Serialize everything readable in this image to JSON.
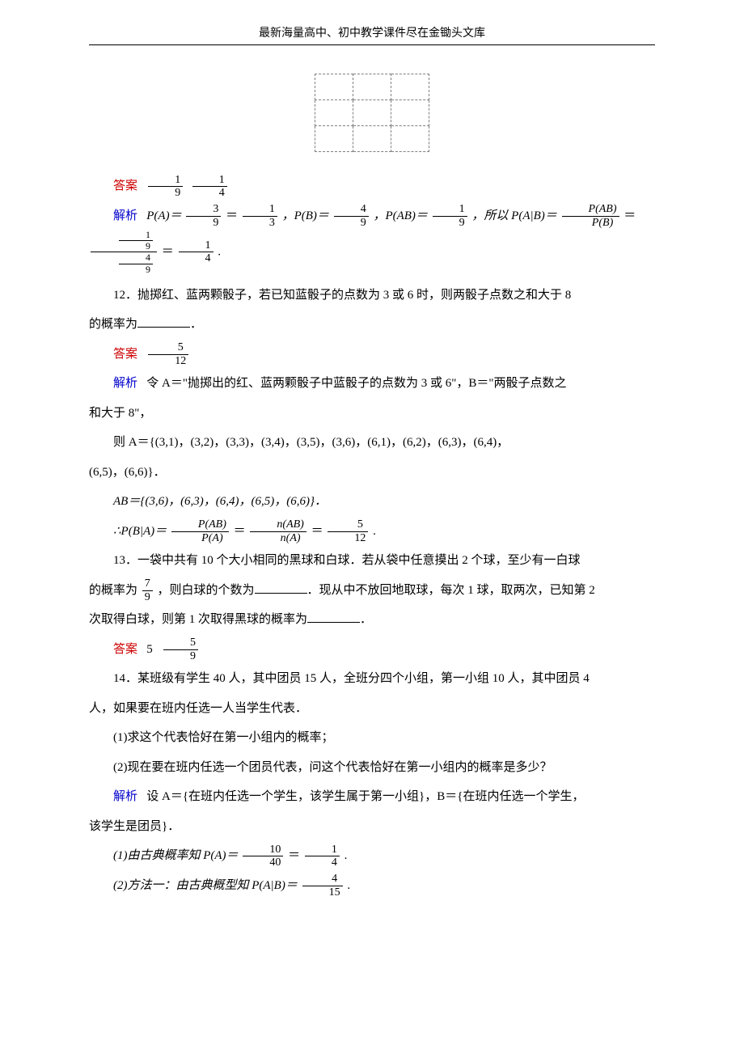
{
  "header": "最新海量高中、初中教学课件尽在金锄头文库",
  "answer_label": "答案",
  "analysis_label": "解析",
  "p11": {
    "answer_frac1_num": "1",
    "answer_frac1_den": "9",
    "answer_frac2_num": "1",
    "answer_frac2_den": "4",
    "analysis_text_1": "P(A)＝",
    "f1_num": "3",
    "f1_den": "9",
    "eq1": "＝",
    "f2_num": "1",
    "f2_den": "3",
    "comma1": "，P(B)＝",
    "f3_num": "4",
    "f3_den": "9",
    "comma2": "，P(AB)＝",
    "f4_num": "1",
    "f4_den": "9",
    "comma3": "，所以 P(A|B)＝",
    "f5_num": "P(AB)",
    "f5_den": "P(B)",
    "eq2": "＝",
    "f6_num_num": "1",
    "f6_num_den": "9",
    "f6_den_num": "4",
    "f6_den_den": "9",
    "eq3": "＝",
    "f7_num": "1",
    "f7_den": "4",
    "period": "."
  },
  "p12": {
    "question": "12．抛掷红、蓝两颗骰子，若已知蓝骰子的点数为 3 或 6 时，则两骰子点数之和大于 8",
    "question_cont": "的概率为",
    "question_end": "．",
    "ans_num": "5",
    "ans_den": "12",
    "analysis_1": "令 A＝\"抛掷出的红、蓝两颗骰子中蓝骰子的点数为 3 或 6\"，B＝\"两骰子点数之",
    "analysis_1_cont": "和大于 8\"，",
    "set_A_1": "则 A＝{(3,1)，(3,2)，(3,3)，(3,4)，(3,5)，(3,6)，(6,1)，(6,2)，(6,3)，(6,4)，",
    "set_A_2": "(6,5)，(6,6)}．",
    "set_AB": "AB＝{(3,6)，(6,3)，(6,4)，(6,5)，(6,6)}．",
    "formula_prefix": "∴P(B|A)＝",
    "ff1_num": "P(AB)",
    "ff1_den": "P(A)",
    "feq1": "＝",
    "ff2_num": "n(AB)",
    "ff2_den": "n(A)",
    "feq2": "＝",
    "ff3_num": "5",
    "ff3_den": "12",
    "fend": "."
  },
  "p13": {
    "q1": "13．一袋中共有 10 个大小相同的黑球和白球．若从袋中任意摸出 2 个球，至少有一白球",
    "q2_pre": "的概率为",
    "qf_num": "7",
    "qf_den": "9",
    "q2_mid": "，则白球的个数为",
    "q2_mid2": "．现从中不放回地取球，每次 1 球，取两次，已知第 2",
    "q3": "次取得白球，则第 1 次取得黑球的概率为",
    "q3_end": "．",
    "ans1": "5",
    "ans2_num": "5",
    "ans2_den": "9"
  },
  "p14": {
    "q1": "14．某班级有学生 40 人，其中团员 15 人，全班分四个小组，第一小组 10 人，其中团员 4",
    "q2": "人，如果要在班内任选一人当学生代表．",
    "sub1": "(1)求这个代表恰好在第一小组内的概率；",
    "sub2": "(2)现在要在班内任选一个团员代表，问这个代表恰好在第一小组内的概率是多少？",
    "analysis": "设 A＝{在班内任选一个学生，该学生属于第一小组}，B＝{在班内任选一个学生，",
    "analysis_cont": "该学生是团员}．",
    "r1_pre": "(1)由古典概率知 P(A)＝",
    "r1f1_num": "10",
    "r1f1_den": "40",
    "r1_eq": "＝",
    "r1f2_num": "1",
    "r1f2_den": "4",
    "r1_end": ".",
    "r2_pre": "(2)方法一：由古典概型知 P(A|B)＝",
    "r2f_num": "4",
    "r2f_den": "15",
    "r2_end": "."
  },
  "grid": {
    "rows": 3,
    "cols": 3
  },
  "colors": {
    "red": "#cc0000",
    "blue": "#0000cc",
    "text": "#000000",
    "border_dash": "#808080",
    "bg": "#ffffff"
  },
  "font_sizes": {
    "header": 14,
    "body": 15,
    "frac": 14
  }
}
